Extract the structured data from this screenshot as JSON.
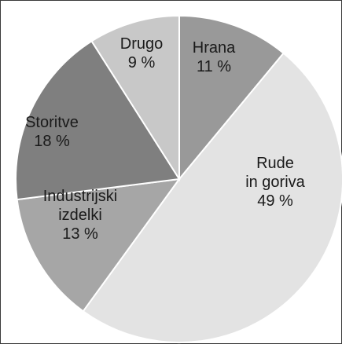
{
  "chart_data": {
    "type": "pie",
    "title": "",
    "legend": "none",
    "slices": [
      {
        "name": "Hrana",
        "value": 11,
        "label_lines": [
          "Hrana",
          "11 %"
        ],
        "color": "#999999"
      },
      {
        "name": "Rude in goriva",
        "value": 49,
        "label_lines": [
          "Rude",
          "in goriva",
          "49 %"
        ],
        "color": "#e3e3e3"
      },
      {
        "name": "Industrijski izdelki",
        "value": 13,
        "label_lines": [
          "Industrijski",
          "izdelki",
          "13 %"
        ],
        "color": "#a6a6a6"
      },
      {
        "name": "Storitve",
        "value": 18,
        "label_lines": [
          "Storitve",
          "18 %"
        ],
        "color": "#7f7f7f"
      },
      {
        "name": "Drugo",
        "value": 9,
        "label_lines": [
          "Drugo",
          "9 %"
        ],
        "color": "#c8c8c8"
      }
    ]
  }
}
